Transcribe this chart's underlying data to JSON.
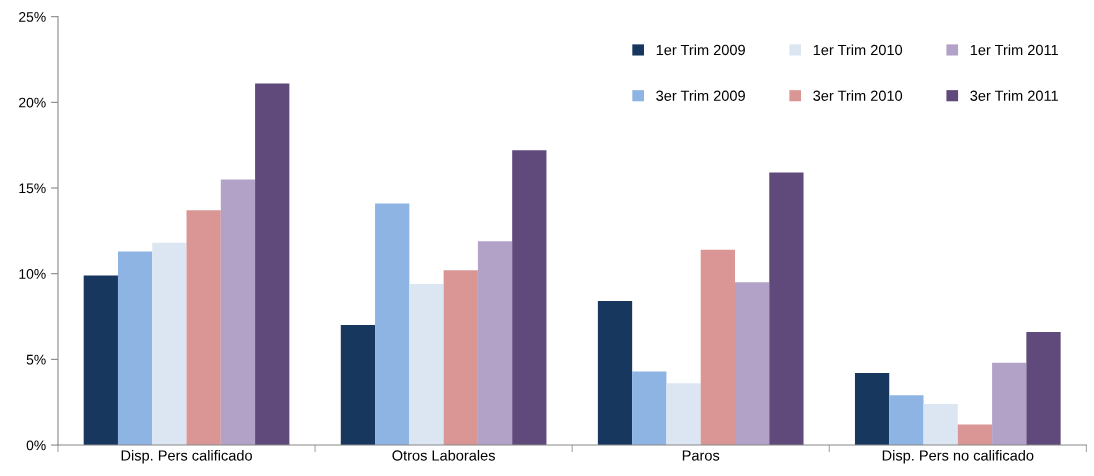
{
  "chart_data": {
    "type": "bar",
    "categories": [
      "Disp. Pers calificado",
      "Otros Laborales",
      "Paros",
      "Disp. Pers no calificado"
    ],
    "series": [
      {
        "name": "1er Trim 2009",
        "color": "#17375e",
        "values": [
          9.9,
          7.0,
          8.4,
          4.2
        ]
      },
      {
        "name": "3er Trim 2009",
        "color": "#8eb4e3",
        "values": [
          11.3,
          14.1,
          4.3,
          2.9
        ]
      },
      {
        "name": "1er Trim 2010",
        "color": "#dce6f2",
        "values": [
          11.8,
          9.4,
          3.6,
          2.4
        ]
      },
      {
        "name": "3er Trim 2010",
        "color": "#d99694",
        "values": [
          13.7,
          10.2,
          11.4,
          1.2
        ]
      },
      {
        "name": "1er Trim 2011",
        "color": "#b3a2c7",
        "values": [
          15.5,
          11.9,
          9.5,
          4.8
        ]
      },
      {
        "name": "3er Trim 2011",
        "color": "#604a7b",
        "values": [
          21.1,
          17.2,
          15.9,
          6.6
        ]
      }
    ],
    "ylim": [
      0,
      25
    ],
    "yticks": [
      {
        "value": 0,
        "label": "0%"
      },
      {
        "value": 5,
        "label": "5%"
      },
      {
        "value": 10,
        "label": "10%"
      },
      {
        "value": 15,
        "label": "15%"
      },
      {
        "value": 20,
        "label": "20%"
      },
      {
        "value": 25,
        "label": "25%"
      }
    ],
    "grid": false,
    "legend": "top right"
  }
}
